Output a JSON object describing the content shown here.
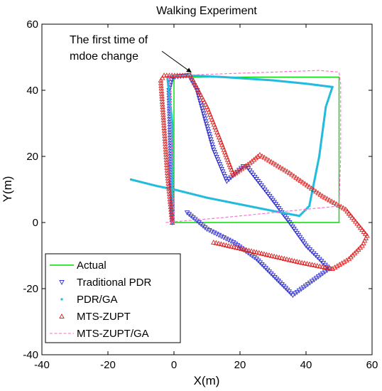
{
  "chart_data": {
    "type": "line",
    "title": "Walking Experiment",
    "xlabel": "X(m)",
    "ylabel": "Y(m)",
    "xlim": [
      -40,
      60
    ],
    "ylim": [
      -40,
      60
    ],
    "xticks": [
      -40,
      -20,
      0,
      20,
      40,
      60
    ],
    "yticks": [
      -40,
      -20,
      0,
      20,
      40,
      60
    ],
    "grid": false,
    "legend_position": "bottom-left",
    "annotation": {
      "lines": [
        "The first time of",
        "mdoe change"
      ],
      "arrow_to": [
        5,
        45
      ]
    },
    "series": [
      {
        "name": "Actual",
        "style": "line",
        "color": "#00dd00",
        "points": [
          [
            0,
            0
          ],
          [
            0,
            44
          ],
          [
            50,
            44
          ],
          [
            50,
            0
          ],
          [
            0,
            0
          ]
        ]
      },
      {
        "name": "Traditional PDR",
        "style": "marker-triangle-down",
        "color": "#3333cc",
        "points": [
          [
            -0.5,
            0
          ],
          [
            -1,
            20
          ],
          [
            -1.5,
            40
          ],
          [
            -0.5,
            44
          ],
          [
            4.5,
            44.5
          ],
          [
            7,
            40
          ],
          [
            12,
            22
          ],
          [
            16,
            12.5
          ],
          [
            21,
            17
          ],
          [
            22,
            17
          ],
          [
            29,
            8
          ],
          [
            35,
            0
          ],
          [
            40,
            -7
          ],
          [
            47,
            -14
          ],
          [
            36,
            -22
          ],
          [
            30,
            -16
          ],
          [
            25,
            -11
          ],
          [
            18,
            -6
          ],
          [
            10,
            -2
          ],
          [
            4,
            3
          ]
        ]
      },
      {
        "name": "PDR/GA",
        "style": "marker-dot",
        "color": "#22bbdd",
        "points": [
          [
            -13,
            13
          ],
          [
            -5,
            11
          ],
          [
            0,
            10
          ],
          [
            10,
            7.5
          ],
          [
            20,
            5.5
          ],
          [
            30,
            3.5
          ],
          [
            38,
            2
          ],
          [
            41,
            5
          ],
          [
            44,
            20
          ],
          [
            46,
            35
          ],
          [
            48,
            41
          ],
          [
            40,
            42
          ],
          [
            30,
            43
          ],
          [
            15,
            44
          ],
          [
            4,
            44.5
          ],
          [
            -2,
            44
          ],
          [
            -0.5,
            30
          ],
          [
            -0.5,
            10
          ],
          [
            -0.5,
            0
          ]
        ]
      },
      {
        "name": "MTS-ZUPT",
        "style": "marker-triangle-up",
        "color": "#dd2222",
        "points": [
          [
            -0.5,
            0
          ],
          [
            -2,
            15
          ],
          [
            -4,
            43
          ],
          [
            -3,
            44.5
          ],
          [
            5,
            44.5
          ],
          [
            10,
            35
          ],
          [
            14,
            25
          ],
          [
            18,
            14.5
          ],
          [
            23,
            18
          ],
          [
            26,
            20.5
          ],
          [
            35,
            15
          ],
          [
            45,
            8
          ],
          [
            52,
            4
          ],
          [
            58.5,
            -4
          ],
          [
            57,
            -7
          ],
          [
            53,
            -11
          ],
          [
            48,
            -14
          ],
          [
            38,
            -12
          ],
          [
            25,
            -9
          ],
          [
            12,
            -6
          ]
        ]
      },
      {
        "name": "MTS-ZUPT/GA",
        "style": "dashed",
        "color": "#ff66cc",
        "points": [
          [
            -2.5,
            0
          ],
          [
            15,
            1.5
          ],
          [
            30,
            3
          ],
          [
            40,
            4
          ],
          [
            50,
            5
          ],
          [
            50.5,
            20
          ],
          [
            50.5,
            42
          ],
          [
            50,
            45.5
          ],
          [
            44,
            46
          ],
          [
            30,
            45.5
          ],
          [
            15,
            45
          ],
          [
            2,
            44.5
          ],
          [
            -1.5,
            44.5
          ],
          [
            -1,
            40
          ],
          [
            -0.5,
            20
          ],
          [
            0,
            0
          ]
        ]
      }
    ]
  }
}
